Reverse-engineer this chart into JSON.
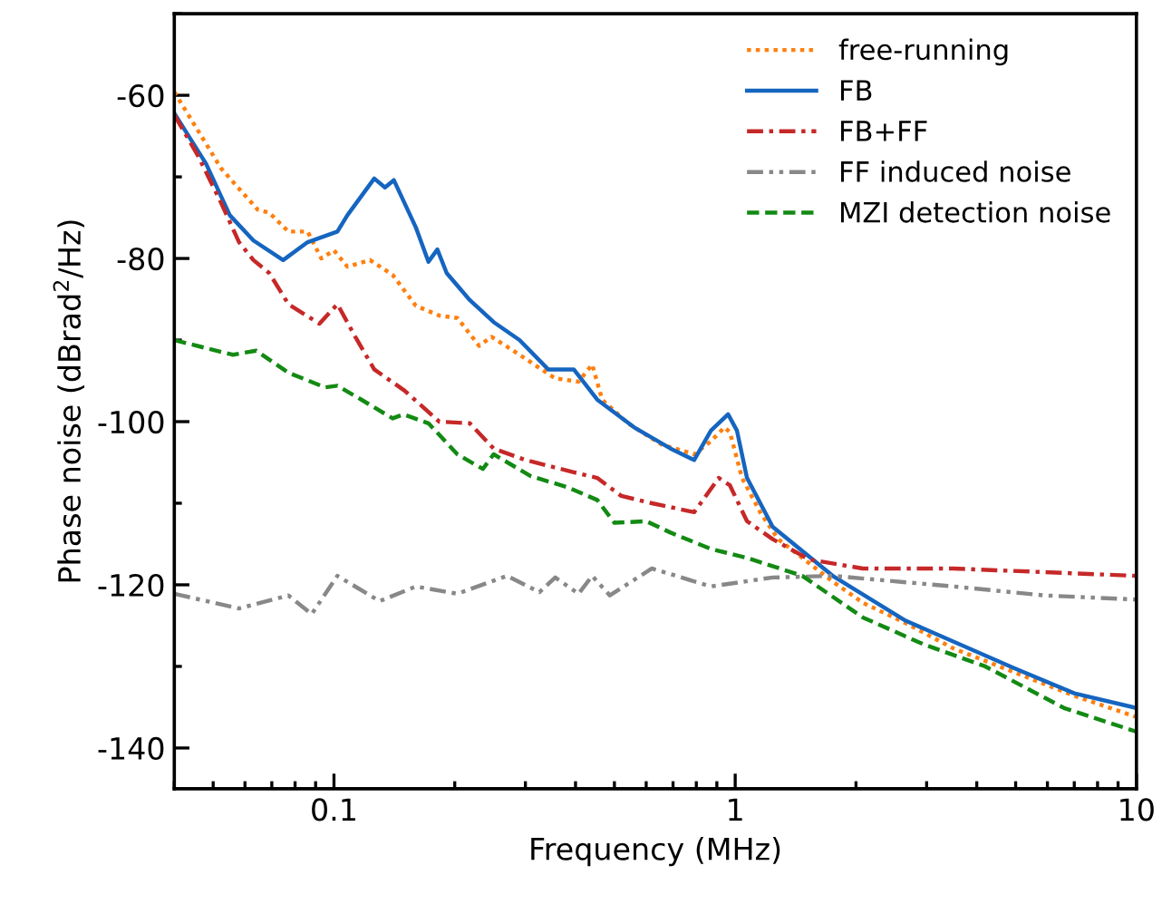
{
  "chart_data": {
    "type": "line",
    "xlabel": "Frequency (MHz)",
    "ylabel": "Phase noise (dBrad$^{2}$/Hz)",
    "log": "x",
    "xlim": [
      0.04,
      10
    ],
    "ylim": [
      -145,
      -50
    ],
    "xticks": [
      0.1,
      1,
      10
    ],
    "yticks": [
      -60,
      -80,
      -100,
      -120,
      -140
    ],
    "grid": false,
    "legend": "top right",
    "series": [
      {
        "name": "free-running",
        "color": "#ff7f0e",
        "line_style": "dotted",
        "x": [
          0.04,
          0.0524,
          0.0645,
          0.069,
          0.077,
          0.086,
          0.093,
          0.1,
          0.108,
          0.123,
          0.14,
          0.16,
          0.183,
          0.203,
          0.23,
          0.247,
          0.29,
          0.356,
          0.407,
          0.44,
          0.466,
          0.54,
          0.66,
          0.71,
          0.79,
          0.87,
          0.94,
          0.97,
          1.04,
          1.16,
          1.28,
          1.47,
          1.75,
          2.08,
          2.66,
          3.5,
          4.95,
          7.0,
          10
        ],
        "values": [
          -59.6,
          -69,
          -74,
          -74.4,
          -76.7,
          -76.7,
          -80,
          -79,
          -81,
          -80.2,
          -82,
          -85.8,
          -87,
          -87.3,
          -90.7,
          -89.6,
          -91.8,
          -94.7,
          -95.1,
          -93,
          -97.3,
          -100.2,
          -102.9,
          -103.3,
          -104,
          -102.4,
          -100.7,
          -101.3,
          -106.9,
          -111.3,
          -114.4,
          -116.7,
          -119.6,
          -122.2,
          -124.7,
          -127.8,
          -130.7,
          -133.6,
          -136.2
        ]
      },
      {
        "name": "FB",
        "color": "#1565c0",
        "line_style": "solid",
        "x": [
          0.04,
          0.048,
          0.055,
          0.063,
          0.0747,
          0.086,
          0.102,
          0.108,
          0.126,
          0.134,
          0.141,
          0.16,
          0.172,
          0.181,
          0.191,
          0.218,
          0.25,
          0.29,
          0.342,
          0.396,
          0.453,
          0.56,
          0.69,
          0.79,
          0.87,
          0.96,
          1.01,
          1.07,
          1.24,
          1.75,
          2.66,
          4.95,
          7.0,
          10
        ],
        "values": [
          -62.2,
          -68.4,
          -74.7,
          -77.8,
          -80.2,
          -78,
          -76.7,
          -74.7,
          -70.2,
          -71.3,
          -70.4,
          -76.2,
          -80.4,
          -78.9,
          -81.8,
          -85.1,
          -87.8,
          -90,
          -93.6,
          -93.6,
          -97.3,
          -100.7,
          -103.3,
          -104.7,
          -101.1,
          -99.1,
          -101.1,
          -106.9,
          -112.9,
          -118.9,
          -124.4,
          -130.2,
          -133.3,
          -135.1
        ]
      },
      {
        "name": "FB+FF",
        "color": "#c62828",
        "line_style": "dashdot",
        "x": [
          0.04,
          0.0457,
          0.052,
          0.058,
          0.063,
          0.069,
          0.077,
          0.092,
          0.102,
          0.113,
          0.126,
          0.15,
          0.183,
          0.218,
          0.25,
          0.3,
          0.396,
          0.453,
          0.52,
          0.62,
          0.79,
          0.91,
          0.97,
          1.07,
          1.24,
          1.53,
          2.08,
          3.5,
          10
        ],
        "values": [
          -62.4,
          -67.3,
          -72.9,
          -78,
          -80.2,
          -81.8,
          -85.6,
          -88,
          -85.6,
          -89.6,
          -93.6,
          -96.2,
          -100,
          -100.2,
          -103.3,
          -104.7,
          -106.2,
          -106.9,
          -109.1,
          -110,
          -111.1,
          -106.9,
          -107.8,
          -112.2,
          -114.4,
          -116.9,
          -118,
          -118,
          -118.9
        ]
      },
      {
        "name": "FF induced noise",
        "color": "#888888",
        "line_style": "dashdotdot",
        "x": [
          0.04,
          0.058,
          0.077,
          0.088,
          0.102,
          0.13,
          0.16,
          0.203,
          0.27,
          0.325,
          0.356,
          0.407,
          0.44,
          0.487,
          0.62,
          0.87,
          1.24,
          1.75,
          3.5,
          5.9,
          10
        ],
        "values": [
          -121.1,
          -122.9,
          -121.3,
          -123.6,
          -118.9,
          -122,
          -120.2,
          -121.1,
          -118.9,
          -120.9,
          -119.1,
          -121.1,
          -118.9,
          -121.3,
          -118,
          -120.2,
          -119.1,
          -118.9,
          -120.2,
          -121.3,
          -121.8
        ]
      },
      {
        "name": "MZI detection noise",
        "color": "#138a13",
        "line_style": "dashed",
        "x": [
          0.04,
          0.049,
          0.056,
          0.064,
          0.077,
          0.095,
          0.102,
          0.117,
          0.14,
          0.149,
          0.172,
          0.203,
          0.235,
          0.25,
          0.31,
          0.38,
          0.453,
          0.5,
          0.6,
          0.69,
          0.87,
          1.07,
          1.47,
          2.08,
          2.95,
          4.2,
          6.6,
          10
        ],
        "values": [
          -90,
          -91.1,
          -91.8,
          -91.3,
          -94,
          -95.8,
          -95.6,
          -97.3,
          -99.6,
          -99.1,
          -100.2,
          -104,
          -105.8,
          -104,
          -106.7,
          -108,
          -109.6,
          -112.4,
          -112.2,
          -113.6,
          -115.6,
          -116.7,
          -118.9,
          -124,
          -127.3,
          -130,
          -135.1,
          -138
        ]
      }
    ]
  }
}
